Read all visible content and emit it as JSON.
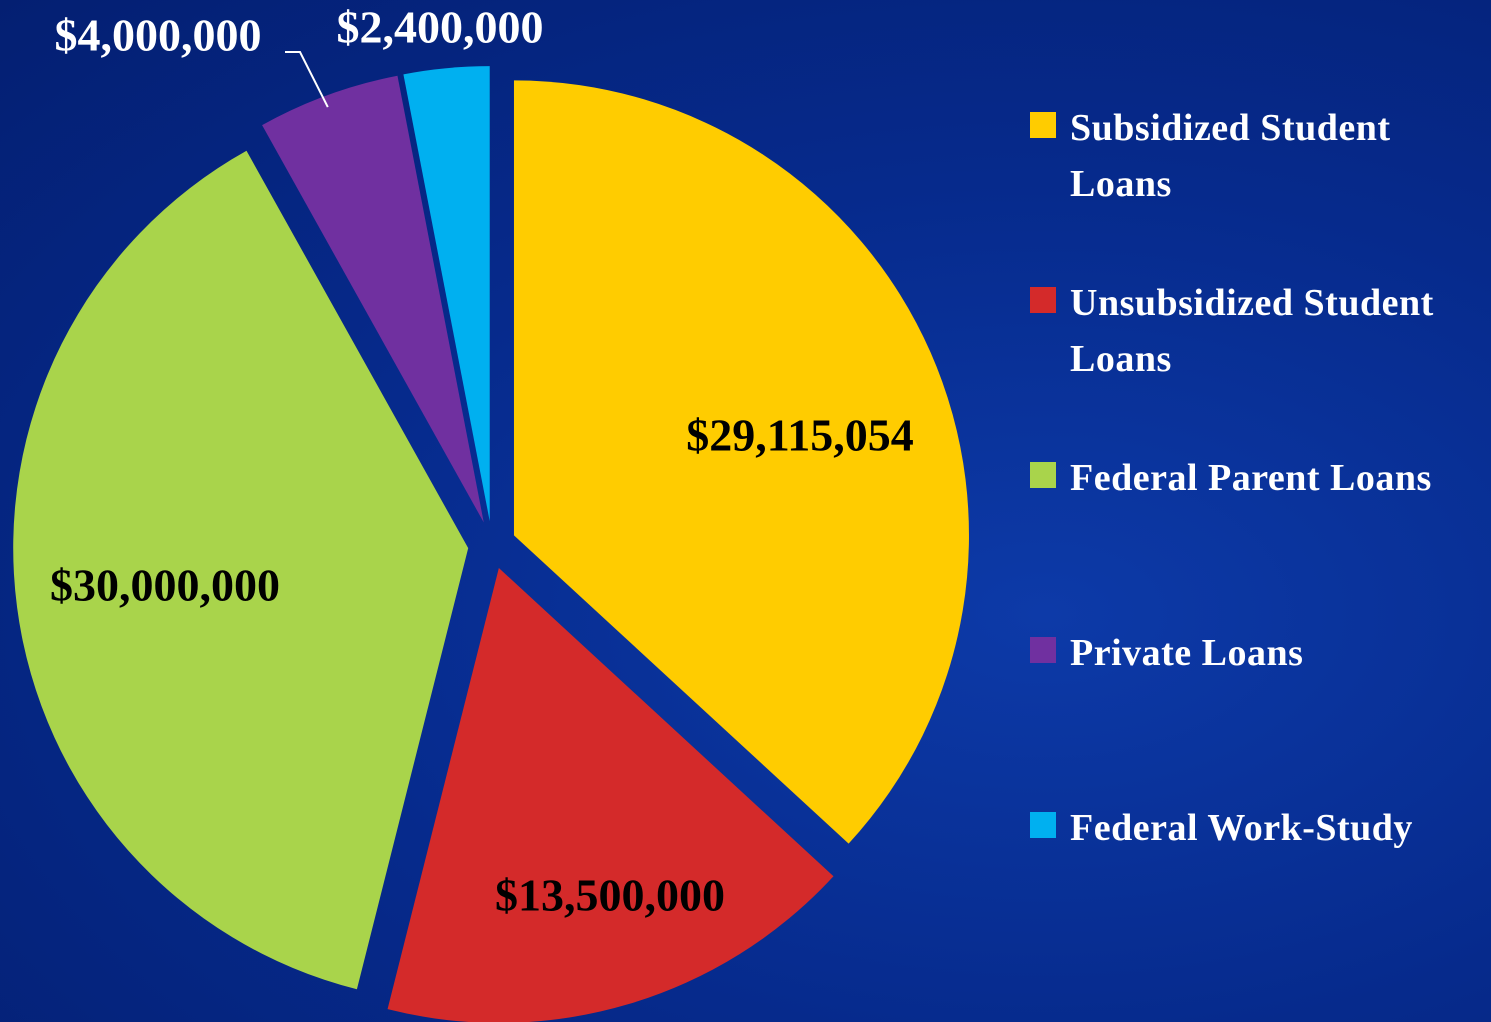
{
  "chart_data": {
    "type": "pie",
    "categories": [
      "Subsidized Student Loans",
      "Unsubsidized Student Loans",
      "Federal Parent Loans",
      "Private Loans",
      "Federal Work-Study"
    ],
    "values": [
      29115054,
      13500000,
      30000000,
      4000000,
      2400000
    ],
    "value_labels": [
      "$29,115,054",
      "$13,500,000",
      "$30,000,000",
      "$4,000,000",
      "$2,400,000"
    ],
    "colors": [
      "#ffcc00",
      "#d42a2a",
      "#a9d44b",
      "#7030a0",
      "#00b0f0"
    ]
  }
}
